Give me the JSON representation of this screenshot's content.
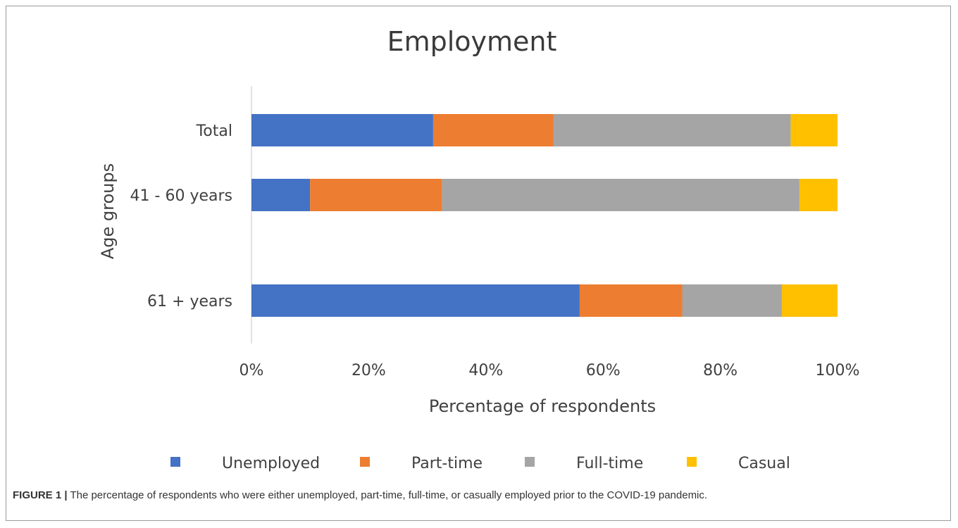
{
  "caption": {
    "label": "FIGURE 1 |",
    "text": " The percentage of respondents who were either unemployed, part-time, full-time, or casually employed prior to the COVID-19 pandemic."
  },
  "chart_data": {
    "type": "bar",
    "orientation": "horizontal",
    "stacked": "percent",
    "title": "Employment",
    "xlabel": "Percentage of respondents",
    "ylabel": "Age groups",
    "categories": [
      "Total",
      "41 - 60 years",
      "61 + years"
    ],
    "series": [
      {
        "name": "Unemployed",
        "color": "#4472C4",
        "values": [
          31,
          10,
          56
        ]
      },
      {
        "name": "Part-time",
        "color": "#ED7D31",
        "values": [
          20.5,
          22.5,
          17.5
        ]
      },
      {
        "name": "Full-time",
        "color": "#A5A5A5",
        "values": [
          40.5,
          61,
          17
        ]
      },
      {
        "name": "Casual",
        "color": "#FFC000",
        "values": [
          8,
          6.5,
          9.5
        ]
      }
    ],
    "xlim": [
      0,
      100
    ],
    "x_ticks": [
      "0%",
      "20%",
      "40%",
      "60%",
      "80%",
      "100%"
    ],
    "grid": false,
    "legend_position": "bottom"
  }
}
